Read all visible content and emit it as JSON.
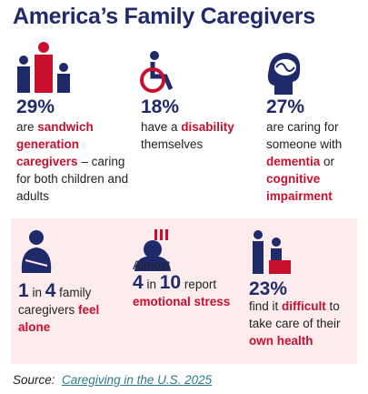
{
  "title": "America’s Family Caregivers",
  "top": [
    {
      "figure": "29%",
      "text": [
        "are ",
        "sandwich generation caregivers",
        " – caring for both children and adults"
      ]
    },
    {
      "figure": "18%",
      "text": [
        "have a ",
        "disability",
        " themselves"
      ]
    },
    {
      "figure": "27%",
      "text": [
        "are caring for someone with ",
        "dementia",
        " or ",
        "cognitive impairment"
      ]
    }
  ],
  "bottom": [
    {
      "text": [
        "1",
        " in ",
        "4",
        " family caregivers ",
        "feel alone"
      ]
    },
    {
      "text": [
        "Almost ",
        "4",
        " in ",
        "10",
        " report ",
        "emotional stress"
      ]
    },
    {
      "text": [
        "23%",
        " find it ",
        "difficult",
        " to take care of their ",
        "own health"
      ]
    }
  ],
  "source": {
    "label": "Source:",
    "link": "Caregiving in the U.S. 2025"
  }
}
